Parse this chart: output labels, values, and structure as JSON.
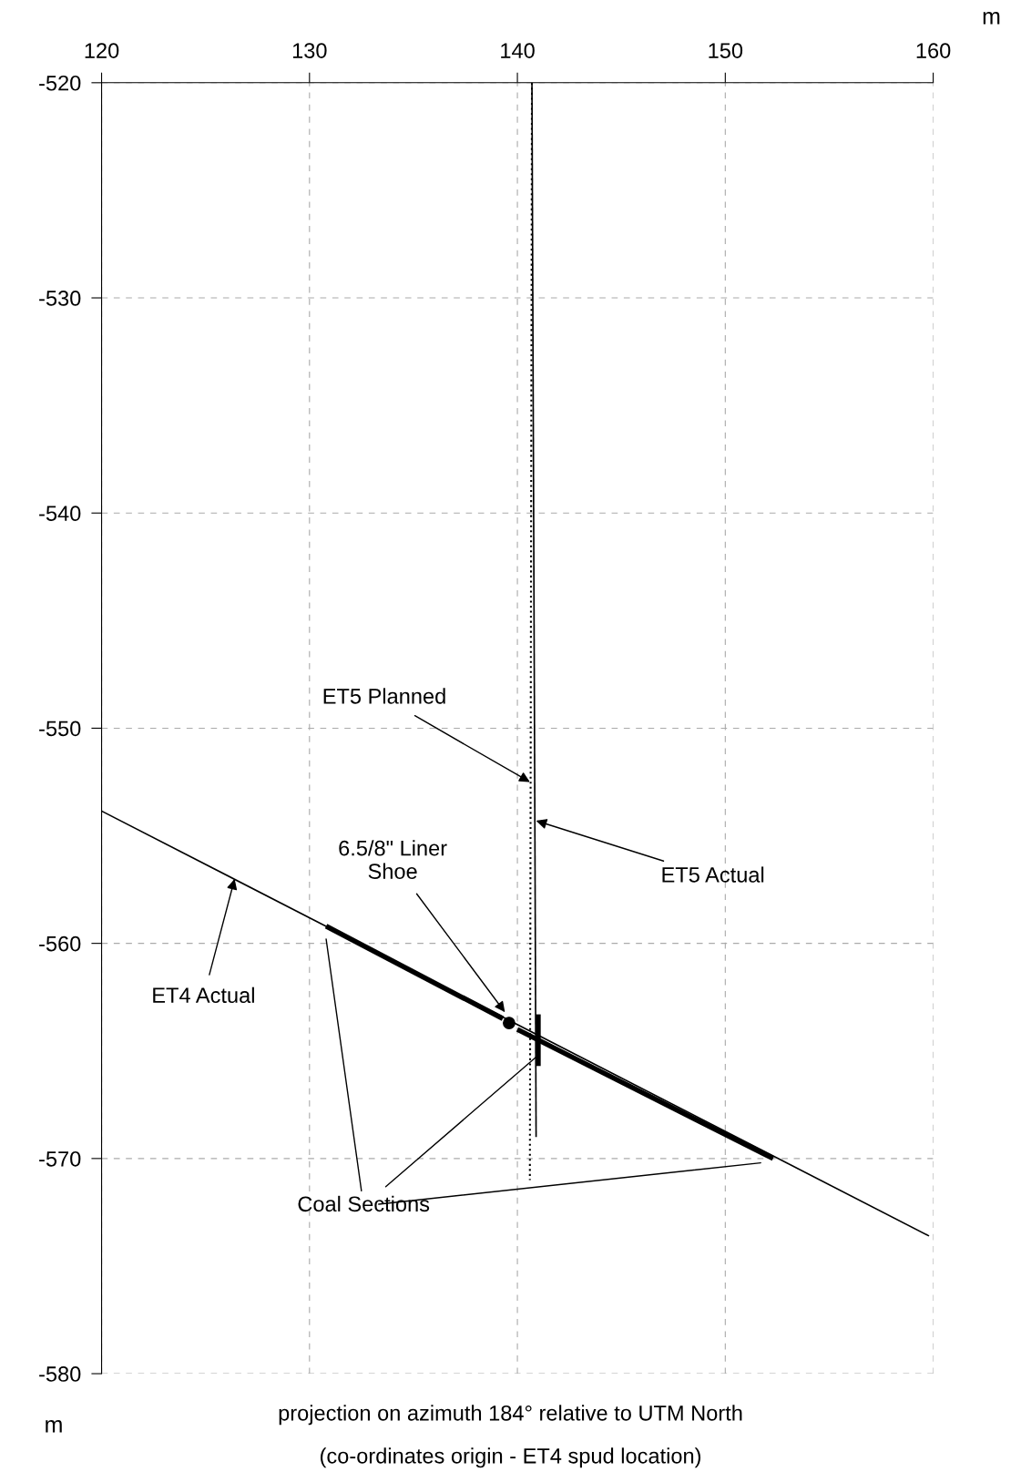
{
  "chart_data": {
    "type": "line",
    "xlabel": "m",
    "ylabel": "m",
    "xlim": [
      120,
      160
    ],
    "xticks": [
      120,
      130,
      140,
      150,
      160
    ],
    "ylim": [
      -580,
      -520
    ],
    "yticks": [
      -580,
      -570,
      -560,
      -550,
      -540,
      -530,
      -520
    ],
    "grid": true,
    "series": [
      {
        "color": "#000000",
        "x": [
          120,
          159.8
        ],
        "values": [
          -553.85,
          -573.6
        ],
        "line_style": "solid"
      },
      {
        "color": "#000000",
        "x": [
          130.8,
          139.3
        ],
        "values": [
          -559.2,
          -563.5
        ],
        "line_style": "solid"
      },
      {
        "color": "#000000",
        "x": [
          140.0,
          152.3
        ],
        "values": [
          -564.0,
          -570.0
        ],
        "line_style": "solid"
      },
      {
        "color": "#000000",
        "x": [
          140.7,
          140.9
        ],
        "values": [
          -520,
          -569.0
        ],
        "line_style": "solid"
      },
      {
        "color": "#000000",
        "x": [
          141.0,
          141.0
        ],
        "values": [
          -563.3,
          -565.7
        ],
        "line_style": "solid"
      },
      {
        "color": "#000000",
        "x": [
          140.7,
          140.6
        ],
        "values": [
          -520,
          -571.0
        ],
        "line_style": "dotted"
      },
      {
        "type": "scatter",
        "color": "#000000",
        "x": [
          139.6
        ],
        "values": [
          -563.7
        ],
        "marker": "circle"
      }
    ],
    "annotations": [
      {
        "text": "ET5 Planned",
        "x": 140.6,
        "y": -552.5
      },
      {
        "text": "ET5 Actual",
        "x": 140.9,
        "y": -554.3
      },
      {
        "text": "6.5/8\" Liner\nShoe",
        "x": 139.4,
        "y": -563.2
      },
      {
        "text": "ET4 Actual",
        "x": 126.4,
        "y": -557.0
      },
      {
        "text": "Coal Sections",
        "x": 141.0,
        "y": -565.2
      },
      "projection on azimuth 184° relative to UTM North",
      "(co-ordinates origin - ET4 spud location)"
    ]
  }
}
